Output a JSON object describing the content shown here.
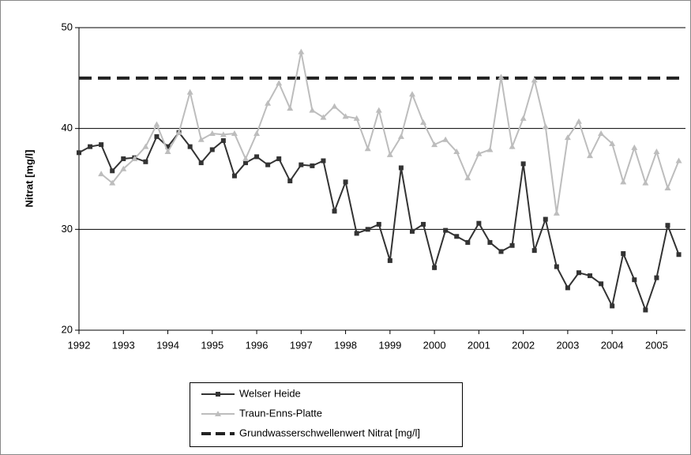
{
  "chart_data": {
    "type": "line",
    "ylabel": "Nitrat [mg/l]",
    "x": [
      1992,
      1992.25,
      1992.5,
      1992.75,
      1993,
      1993.25,
      1993.5,
      1993.75,
      1994,
      1994.25,
      1994.5,
      1994.75,
      1995,
      1995.25,
      1995.5,
      1995.75,
      1996,
      1996.25,
      1996.5,
      1996.75,
      1997,
      1997.25,
      1997.5,
      1997.75,
      1998,
      1998.25,
      1998.5,
      1998.75,
      1999,
      1999.25,
      1999.5,
      1999.75,
      2000,
      2000.25,
      2000.5,
      2000.75,
      2001,
      2001.25,
      2001.5,
      2001.75,
      2002,
      2002.25,
      2002.5,
      2002.75,
      2003,
      2003.25,
      2003.5,
      2003.75,
      2004,
      2004.25,
      2004.5,
      2004.75,
      2005,
      2005.25,
      2005.5
    ],
    "series": [
      {
        "name": "Welser Heide",
        "color": "#333333",
        "marker": "square",
        "values": [
          37.6,
          38.2,
          38.4,
          35.8,
          37.0,
          37.1,
          36.7,
          39.2,
          38.2,
          39.6,
          38.2,
          36.6,
          37.9,
          38.8,
          35.3,
          36.6,
          37.2,
          36.4,
          37.0,
          34.8,
          36.4,
          36.3,
          36.8,
          31.8,
          34.7,
          29.6,
          30.0,
          30.5,
          26.9,
          36.1,
          29.8,
          30.5,
          26.2,
          29.9,
          29.3,
          28.7,
          30.6,
          28.7,
          27.8,
          28.4,
          36.5,
          27.9,
          31.0,
          26.3,
          24.2,
          25.7,
          25.4,
          24.6,
          22.4,
          27.6,
          25.0,
          22.0,
          25.2,
          30.4,
          27.5
        ]
      },
      {
        "name": "Traun-Enns-Platte",
        "color": "#bdbdbd",
        "marker": "triangle",
        "values": [
          null,
          null,
          35.5,
          34.6,
          36.0,
          37.0,
          38.2,
          40.4,
          37.7,
          39.6,
          43.6,
          38.9,
          39.5,
          39.4,
          39.5,
          37.0,
          39.5,
          42.5,
          44.5,
          42.0,
          47.6,
          41.8,
          41.1,
          42.2,
          41.2,
          41.0,
          38.0,
          41.8,
          37.4,
          39.2,
          43.4,
          40.6,
          38.4,
          38.9,
          37.7,
          35.1,
          37.5,
          37.9,
          45.1,
          38.2,
          41.0,
          44.8,
          40.2,
          31.6,
          39.1,
          40.7,
          37.3,
          39.5,
          38.5,
          34.7,
          38.1,
          34.6,
          37.7,
          34.1,
          36.8
        ]
      }
    ],
    "threshold": {
      "name": "Grundwasserschwellenwert Nitrat [mg/l]",
      "value": 45,
      "color": "#222222"
    },
    "xlim": [
      1992,
      2005.65
    ],
    "xticks": [
      1992,
      1993,
      1994,
      1995,
      1996,
      1997,
      1998,
      1999,
      2000,
      2001,
      2002,
      2003,
      2004,
      2005
    ],
    "ylim": [
      20,
      50
    ],
    "yticks": [
      20,
      30,
      40,
      50
    ],
    "grid": true
  }
}
